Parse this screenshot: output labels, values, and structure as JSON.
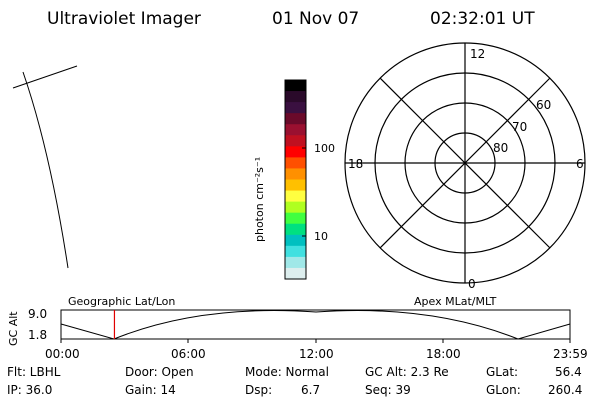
{
  "header": {
    "instrument": "Ultraviolet Imager",
    "date": "01 Nov 07",
    "time": "02:32:01 UT"
  },
  "colorbar": {
    "label": "photon cm⁻²s⁻¹",
    "tick_100": "100",
    "tick_10": "10",
    "colors": [
      "#000000",
      "#2a0a2a",
      "#3a1040",
      "#6a0a2a",
      "#9a1030",
      "#c01020",
      "#ff0000",
      "#ff5000",
      "#ff9000",
      "#ffc000",
      "#ffff40",
      "#b0ff20",
      "#40ff40",
      "#00e080",
      "#00c0c0",
      "#40e0e0",
      "#a0e8e8",
      "#ddeeee"
    ]
  },
  "polar": {
    "labels": {
      "top": "12",
      "left": "18",
      "right": "6",
      "bottom": "0"
    },
    "rings": [
      "60",
      "70",
      "80"
    ]
  },
  "timeline": {
    "ylabel": "GC Alt",
    "yticks": [
      "9.0",
      "1.8"
    ],
    "left_title": "Geographic Lat/Lon",
    "right_title": "Apex MLat/MLT",
    "xticks": [
      "00:00",
      "06:00",
      "12:00",
      "18:00",
      "23:59"
    ],
    "marker_fraction": 0.105
  },
  "info": {
    "flt": "Flt: LBHL",
    "ip": "IP: 36.0",
    "door": "Door: Open",
    "gain": "Gain: 14",
    "mode": "Mode: Normal",
    "dsp": "Dsp:",
    "dsp_val": "6.7",
    "gcalt": "GC Alt: 2.3 Re",
    "seq": "Seq: 39",
    "glat": "GLat:",
    "glat_val": "56.4",
    "glon": "GLon:",
    "glon_val": "260.4"
  }
}
